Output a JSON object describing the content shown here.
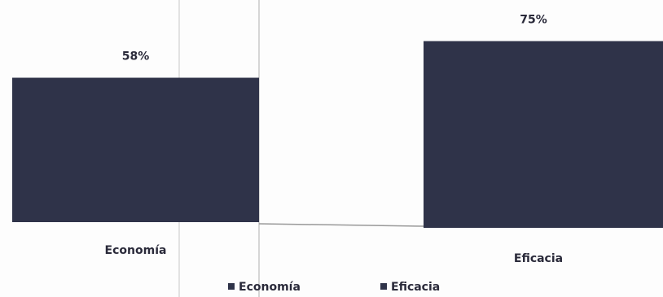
{
  "chart_data": {
    "type": "bar",
    "categories": [
      "Economía",
      "Eficacia"
    ],
    "values": [
      58,
      75
    ],
    "value_labels": [
      "58%",
      "75%"
    ],
    "color": "#2f3349",
    "legend": true
  }
}
